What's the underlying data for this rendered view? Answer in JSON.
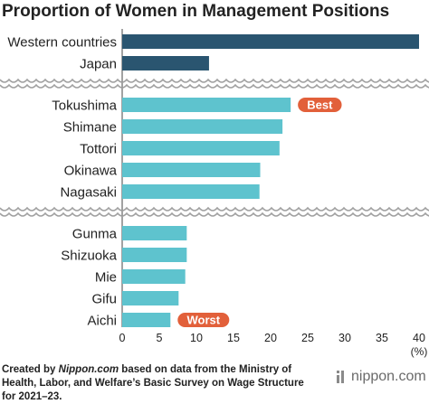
{
  "chart_data": {
    "type": "bar",
    "orientation": "horizontal",
    "title": "Proportion of Women in Management Positions",
    "unit_label": "(%)",
    "xlim": [
      0,
      40
    ],
    "x_ticks": [
      "0",
      "5",
      "10",
      "15",
      "20",
      "25",
      "30",
      "35",
      "40"
    ],
    "bar_colors": {
      "comparison": "#2a5570",
      "prefecture": "#5ec3ce"
    },
    "badge_color": "#e2603a",
    "groups": [
      {
        "id": "comparison",
        "categories": [
          "Western countries",
          "Japan"
        ],
        "values": [
          40,
          11.7
        ]
      },
      {
        "id": "top",
        "categories": [
          "Tokushima",
          "Shimane",
          "Tottori",
          "Okinawa",
          "Nagasaki"
        ],
        "values": [
          22.7,
          21.6,
          21.2,
          18.6,
          18.5
        ]
      },
      {
        "id": "bottom",
        "categories": [
          "Gunma",
          "Shizuoka",
          "Mie",
          "Gifu",
          "Aichi"
        ],
        "values": [
          8.7,
          8.7,
          8.5,
          7.6,
          6.5
        ]
      }
    ],
    "badges": [
      {
        "category": "Tokushima",
        "text": "Best"
      },
      {
        "category": "Aichi",
        "text": "Worst"
      }
    ]
  },
  "footer": {
    "pre": "Created by ",
    "site": "Nippon.com",
    "post": " based on data from the Ministry of Health, Labor, and Welfare’s Basic Survey on Wage Structure for 2021–23."
  },
  "brand": {
    "text": "nippon.com",
    "mark_icon": "nippon-logo-mark"
  }
}
